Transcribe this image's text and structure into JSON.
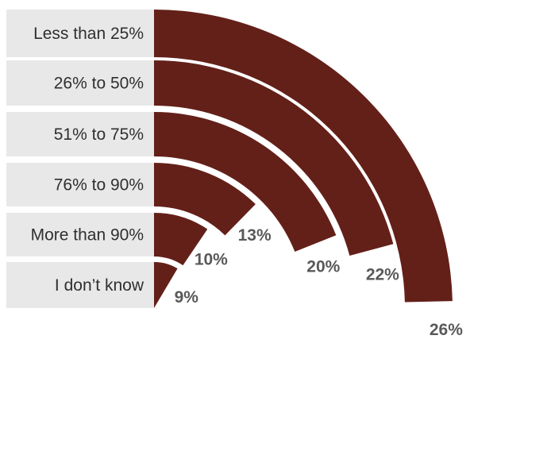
{
  "chart_data": {
    "type": "bar",
    "variant": "radial",
    "categories": [
      "Less than 25%",
      "26% to 50%",
      "51% to 75%",
      "76% to 90%",
      "More than 90%",
      "I don’t know"
    ],
    "values": [
      26,
      22,
      20,
      13,
      10,
      9
    ],
    "value_labels": [
      "26%",
      "22%",
      "20%",
      "13%",
      "10%",
      "9%"
    ],
    "title": "",
    "xlabel": "",
    "ylabel": "",
    "legend": "none",
    "grid": false
  },
  "colors": {
    "bar": "#632019",
    "label_band": "#e8e8e8",
    "category_text": "#2f2f2f",
    "value_text": "#595959"
  }
}
